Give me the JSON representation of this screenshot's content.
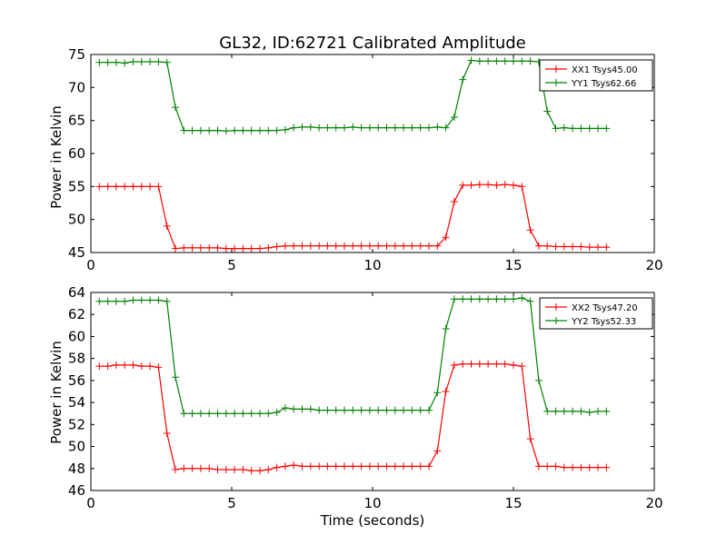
{
  "figure": {
    "title": "GL32, ID:62721 Calibrated Amplitude",
    "xlabel": "Time (seconds)"
  },
  "chart_data": [
    {
      "type": "line",
      "title": "GL32, ID:62721 Calibrated Amplitude",
      "xlabel": "",
      "ylabel": "Power in Kelvin",
      "xlim": [
        0,
        20
      ],
      "ylim": [
        45,
        75
      ],
      "xticks": [
        "0",
        "5",
        "10",
        "15",
        "20"
      ],
      "yticks": [
        "45",
        "50",
        "55",
        "60",
        "65",
        "70",
        "75"
      ],
      "xtick_values": [
        0,
        5,
        10,
        15,
        20
      ],
      "ytick_values": [
        45,
        50,
        55,
        60,
        65,
        70,
        75
      ],
      "grid": false,
      "legend_position": "top-right",
      "x": [
        0.3,
        0.6,
        0.9,
        1.2,
        1.5,
        1.8,
        2.1,
        2.4,
        2.7,
        3.0,
        3.3,
        3.6,
        3.9,
        4.2,
        4.5,
        4.8,
        5.1,
        5.4,
        5.7,
        6.0,
        6.3,
        6.6,
        6.9,
        7.2,
        7.5,
        7.8,
        8.1,
        8.4,
        8.7,
        9.0,
        9.3,
        9.6,
        9.9,
        10.2,
        10.5,
        10.8,
        11.1,
        11.4,
        11.7,
        12.0,
        12.3,
        12.6,
        12.9,
        13.2,
        13.5,
        13.8,
        14.1,
        14.4,
        14.7,
        15.0,
        15.3,
        15.6,
        15.9,
        16.2,
        16.5,
        16.8,
        17.1,
        17.4,
        17.7,
        18.0,
        18.3
      ],
      "series": [
        {
          "name": "XX1 Tsys45.00",
          "color": "#ff0000",
          "values": [
            55.0,
            55.0,
            55.0,
            55.0,
            55.0,
            55.0,
            55.0,
            55.0,
            49.0,
            45.6,
            45.7,
            45.7,
            45.7,
            45.7,
            45.7,
            45.6,
            45.6,
            45.6,
            45.6,
            45.6,
            45.7,
            45.9,
            46.0,
            46.0,
            46.0,
            46.0,
            46.0,
            46.0,
            46.0,
            46.0,
            46.0,
            46.0,
            46.0,
            46.0,
            46.0,
            46.0,
            46.0,
            46.0,
            46.0,
            46.0,
            46.0,
            47.3,
            52.7,
            55.2,
            55.2,
            55.3,
            55.3,
            55.2,
            55.3,
            55.2,
            55.0,
            48.4,
            46.0,
            46.0,
            45.9,
            45.9,
            45.9,
            45.9,
            45.8,
            45.8,
            45.8
          ]
        },
        {
          "name": "YY1 Tsys62.66",
          "color": "#008000",
          "values": [
            73.8,
            73.8,
            73.8,
            73.7,
            73.9,
            73.9,
            73.9,
            73.9,
            73.8,
            67.0,
            63.5,
            63.5,
            63.5,
            63.5,
            63.5,
            63.4,
            63.5,
            63.5,
            63.5,
            63.5,
            63.5,
            63.5,
            63.6,
            63.9,
            64.0,
            64.0,
            63.9,
            63.9,
            63.9,
            63.9,
            64.0,
            63.9,
            63.9,
            63.9,
            63.9,
            63.9,
            63.9,
            63.9,
            63.9,
            63.9,
            64.0,
            63.9,
            65.5,
            71.2,
            74.1,
            74.0,
            74.0,
            74.0,
            74.0,
            74.0,
            74.0,
            74.0,
            73.9,
            66.4,
            63.8,
            63.9,
            63.8,
            63.8,
            63.8,
            63.8,
            63.8
          ]
        }
      ]
    },
    {
      "type": "line",
      "title": "",
      "xlabel": "Time (seconds)",
      "ylabel": "Power in Kelvin",
      "xlim": [
        0,
        20
      ],
      "ylim": [
        46,
        64
      ],
      "xticks": [
        "0",
        "5",
        "10",
        "15",
        "20"
      ],
      "yticks": [
        "46",
        "48",
        "50",
        "52",
        "54",
        "56",
        "58",
        "60",
        "62",
        "64"
      ],
      "xtick_values": [
        0,
        5,
        10,
        15,
        20
      ],
      "ytick_values": [
        46,
        48,
        50,
        52,
        54,
        56,
        58,
        60,
        62,
        64
      ],
      "grid": false,
      "legend_position": "top-right",
      "x": [
        0.3,
        0.6,
        0.9,
        1.2,
        1.5,
        1.8,
        2.1,
        2.4,
        2.7,
        3.0,
        3.3,
        3.6,
        3.9,
        4.2,
        4.5,
        4.8,
        5.1,
        5.4,
        5.7,
        6.0,
        6.3,
        6.6,
        6.9,
        7.2,
        7.5,
        7.8,
        8.1,
        8.4,
        8.7,
        9.0,
        9.3,
        9.6,
        9.9,
        10.2,
        10.5,
        10.8,
        11.1,
        11.4,
        11.7,
        12.0,
        12.3,
        12.6,
        12.9,
        13.2,
        13.5,
        13.8,
        14.1,
        14.4,
        14.7,
        15.0,
        15.3,
        15.6,
        15.9,
        16.2,
        16.5,
        16.8,
        17.1,
        17.4,
        17.7,
        18.0,
        18.3
      ],
      "series": [
        {
          "name": "XX2 Tsys47.20",
          "color": "#ff0000",
          "values": [
            57.3,
            57.3,
            57.4,
            57.4,
            57.4,
            57.3,
            57.3,
            57.2,
            51.2,
            47.9,
            48.0,
            48.0,
            48.0,
            48.0,
            47.9,
            47.9,
            47.9,
            47.9,
            47.8,
            47.8,
            47.9,
            48.1,
            48.2,
            48.3,
            48.2,
            48.2,
            48.2,
            48.2,
            48.2,
            48.2,
            48.2,
            48.2,
            48.2,
            48.2,
            48.2,
            48.2,
            48.2,
            48.2,
            48.2,
            48.2,
            49.6,
            55.0,
            57.4,
            57.5,
            57.5,
            57.5,
            57.5,
            57.5,
            57.5,
            57.4,
            57.3,
            50.7,
            48.2,
            48.2,
            48.2,
            48.1,
            48.1,
            48.1,
            48.1,
            48.1,
            48.1
          ]
        },
        {
          "name": "YY2 Tsys52.33",
          "color": "#008000",
          "values": [
            63.2,
            63.2,
            63.2,
            63.2,
            63.3,
            63.3,
            63.3,
            63.3,
            63.2,
            56.3,
            53.0,
            53.0,
            53.0,
            53.0,
            53.0,
            53.0,
            53.0,
            53.0,
            53.0,
            53.0,
            53.0,
            53.1,
            53.5,
            53.4,
            53.4,
            53.4,
            53.3,
            53.3,
            53.3,
            53.3,
            53.3,
            53.3,
            53.3,
            53.3,
            53.3,
            53.3,
            53.3,
            53.3,
            53.3,
            53.3,
            54.9,
            60.7,
            63.4,
            63.4,
            63.4,
            63.4,
            63.4,
            63.4,
            63.4,
            63.4,
            63.5,
            63.2,
            56.0,
            53.2,
            53.2,
            53.2,
            53.2,
            53.2,
            53.1,
            53.2,
            53.2
          ]
        }
      ]
    }
  ]
}
